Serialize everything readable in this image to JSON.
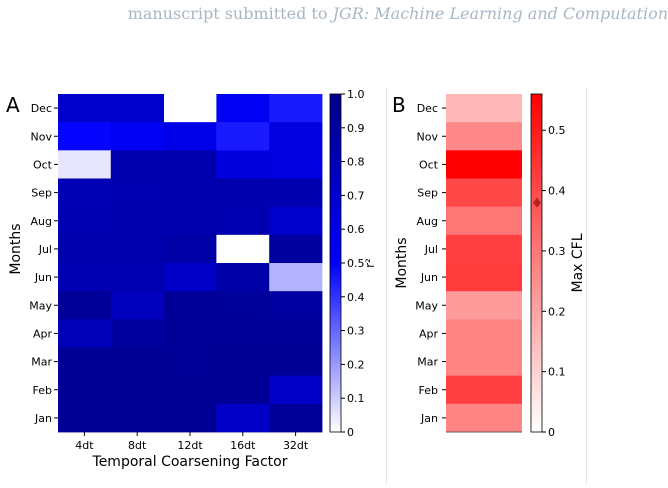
{
  "header": {
    "prefix": "manuscript submitted to ",
    "journal": "JGR: Machine Learning and Computation"
  },
  "chart_data": [
    {
      "type": "heatmap",
      "panel_label": "A",
      "xlabel": "Temporal Coarsening Factor",
      "ylabel": "Months",
      "colorbar_label": "r²",
      "colorbar_range": [
        0,
        1
      ],
      "colorbar_ticks": [
        "0",
        "0.1",
        "0.2",
        "0.3",
        "0.4",
        "0.5",
        "0.6",
        "0.7",
        "0.8",
        "0.9",
        "1.0"
      ],
      "colormap": [
        "#ffffff",
        "#0000ff",
        "#00008b"
      ],
      "x_categories": [
        "4dt",
        "8dt",
        "12dt",
        "16dt",
        "32dt"
      ],
      "y_categories": [
        "Dec",
        "Nov",
        "Oct",
        "Sep",
        "Aug",
        "Jul",
        "Jun",
        "May",
        "Apr",
        "Mar",
        "Feb",
        "Jan"
      ],
      "values": [
        [
          0.72,
          0.72,
          null,
          0.55,
          0.45
        ],
        [
          0.49,
          0.55,
          0.6,
          0.45,
          0.63
        ],
        [
          0.05,
          0.85,
          0.85,
          0.65,
          0.63
        ],
        [
          0.82,
          0.83,
          0.84,
          0.85,
          0.84
        ],
        [
          0.83,
          0.84,
          0.84,
          0.83,
          0.72
        ],
        [
          0.85,
          0.85,
          0.88,
          0.0,
          0.92
        ],
        [
          0.83,
          0.83,
          0.74,
          0.87,
          0.15
        ],
        [
          0.94,
          0.78,
          0.94,
          0.93,
          0.9
        ],
        [
          0.8,
          0.92,
          0.95,
          0.95,
          0.95
        ],
        [
          0.96,
          0.96,
          0.95,
          0.96,
          0.96
        ],
        [
          0.96,
          0.96,
          0.96,
          0.96,
          0.74
        ],
        [
          0.96,
          0.96,
          0.96,
          0.74,
          0.94
        ]
      ]
    },
    {
      "type": "heatmap",
      "panel_label": "B",
      "ylabel": "Months",
      "colorbar_label": "Max CFL",
      "colorbar_range": [
        0,
        0.56
      ],
      "colorbar_ticks": [
        "0",
        "0.1",
        "0.2",
        "0.3",
        "0.4",
        "0.5"
      ],
      "colorbar_marker_value": 0.38,
      "colormap": [
        "#ffffff",
        "#ff0000"
      ],
      "y_categories": [
        "Dec",
        "Nov",
        "Oct",
        "Sep",
        "Aug",
        "Jul",
        "Jun",
        "May",
        "Apr",
        "Mar",
        "Feb",
        "Jan"
      ],
      "values": [
        0.16,
        0.26,
        0.56,
        0.4,
        0.3,
        0.42,
        0.43,
        0.22,
        0.27,
        0.27,
        0.42,
        0.27
      ]
    }
  ],
  "colors": {
    "marker": "#b22222"
  }
}
